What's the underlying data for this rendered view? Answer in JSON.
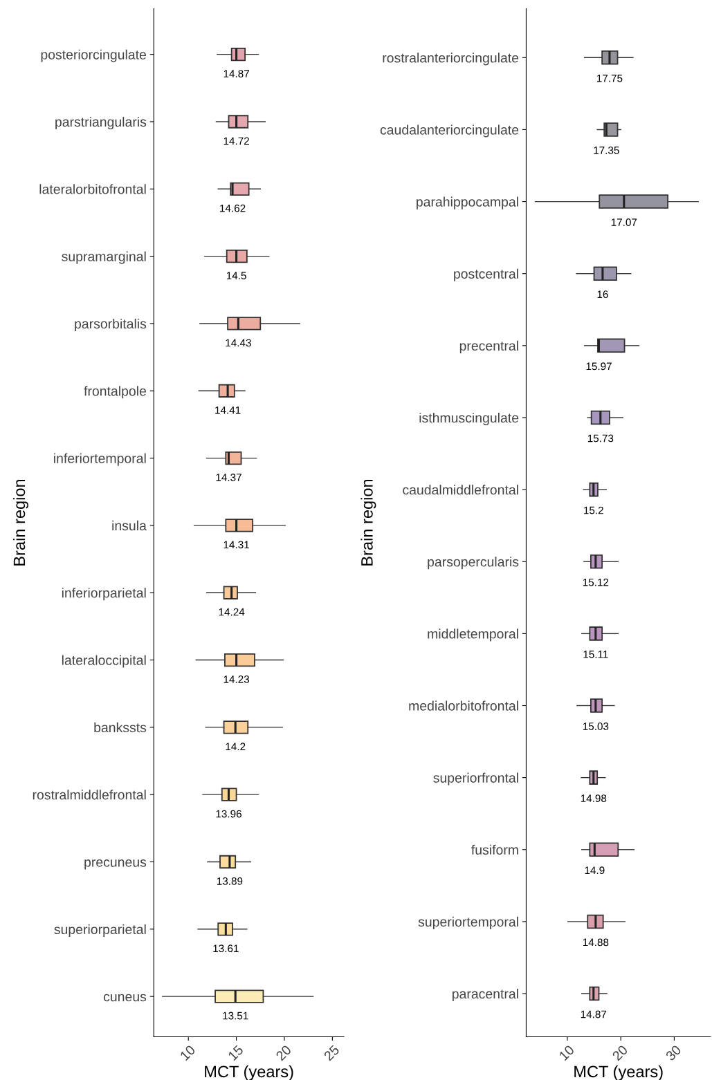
{
  "chart_data": [
    {
      "type": "box",
      "orientation": "horizontal",
      "xlabel": "MCT (years)",
      "ylabel": "Brain region",
      "xlim": [
        6.4,
        26.2
      ],
      "xticks": [
        10,
        15,
        20,
        25
      ],
      "grid": false,
      "categories": [
        "posteriorcingulate",
        "parstriangularis",
        "lateralorbitofrontal",
        "supramarginal",
        "parsorbitalis",
        "frontalpole",
        "inferiortemporal",
        "insula",
        "inferiorparietal",
        "lateraloccipital",
        "bankssts",
        "rostralmiddlefrontal",
        "precuneus",
        "superiorparietal",
        "cuneus"
      ],
      "boxes": [
        {
          "low": 13.0,
          "q1": 14.5,
          "median": 15.0,
          "q3": 15.9,
          "high": 17.3
        },
        {
          "low": 12.9,
          "q1": 14.2,
          "median": 15.0,
          "q3": 16.2,
          "high": 18.0
        },
        {
          "low": 13.1,
          "q1": 14.4,
          "median": 14.6,
          "q3": 16.3,
          "high": 17.5
        },
        {
          "low": 11.7,
          "q1": 14.0,
          "median": 15.0,
          "q3": 16.1,
          "high": 18.4
        },
        {
          "low": 11.2,
          "q1": 14.1,
          "median": 15.2,
          "q3": 17.5,
          "high": 21.6
        },
        {
          "low": 11.1,
          "q1": 13.2,
          "median": 14.1,
          "q3": 14.8,
          "high": 15.9
        },
        {
          "low": 11.9,
          "q1": 13.9,
          "median": 14.2,
          "q3": 15.5,
          "high": 17.1
        },
        {
          "low": 10.6,
          "q1": 13.9,
          "median": 15.0,
          "q3": 16.7,
          "high": 20.1
        },
        {
          "low": 11.9,
          "q1": 13.7,
          "median": 14.5,
          "q3": 15.1,
          "high": 17.0
        },
        {
          "low": 10.8,
          "q1": 13.8,
          "median": 15.0,
          "q3": 16.9,
          "high": 19.9
        },
        {
          "low": 11.8,
          "q1": 13.7,
          "median": 14.9,
          "q3": 16.2,
          "high": 19.8
        },
        {
          "low": 11.5,
          "q1": 13.5,
          "median": 14.2,
          "q3": 15.0,
          "high": 17.3
        },
        {
          "low": 12.0,
          "q1": 13.3,
          "median": 14.3,
          "q3": 14.9,
          "high": 16.5
        },
        {
          "low": 11.0,
          "q1": 13.1,
          "median": 13.9,
          "q3": 14.6,
          "high": 16.1
        },
        {
          "low": 7.3,
          "q1": 12.8,
          "median": 14.9,
          "q3": 17.8,
          "high": 23.0
        }
      ],
      "colors": [
        "#c85a6e",
        "#cc5e6c",
        "#d26168",
        "#d6625c",
        "#dd6a52",
        "#e57048",
        "#ea7845",
        "#f0843f",
        "#f49a44",
        "#f5a443",
        "#f5ac45",
        "#f6b646",
        "#f7bf4a",
        "#f6c54f",
        "#f6dc76"
      ],
      "value_labels": [
        "14.87",
        "14.72",
        "14.62",
        "14.5",
        "14.43",
        "14.41",
        "14.37",
        "14.31",
        "14.24",
        "14.23",
        "14.2",
        "13.96",
        "13.89",
        "13.61",
        "13.51"
      ]
    },
    {
      "type": "box",
      "orientation": "horizontal",
      "xlabel": "MCT (years)",
      "ylabel": "Brain region",
      "xlim": [
        2.3,
        36.8
      ],
      "xticks": [
        10,
        20,
        30
      ],
      "grid": false,
      "categories": [
        "rostralanteriorcingulate",
        "caudalanteriorcingulate",
        "parahippocampal",
        "postcentral",
        "precentral",
        "isthmuscingulate",
        "caudalmiddlefrontal",
        "parsopercularis",
        "middletemporal",
        "medialorbitofrontal",
        "superiorfrontal",
        "fusiform",
        "superiortemporal",
        "paracentral"
      ],
      "boxes": [
        {
          "low": 13.2,
          "q1": 16.5,
          "median": 17.9,
          "q3": 19.4,
          "high": 22.3
        },
        {
          "low": 15.6,
          "q1": 16.9,
          "median": 17.3,
          "q3": 19.4,
          "high": 20.0
        },
        {
          "low": 4.0,
          "q1": 16.0,
          "median": 20.6,
          "q3": 28.8,
          "high": 34.5
        },
        {
          "low": 11.7,
          "q1": 15.0,
          "median": 16.6,
          "q3": 19.2,
          "high": 21.9
        },
        {
          "low": 13.2,
          "q1": 15.7,
          "median": 15.9,
          "q3": 20.7,
          "high": 23.4
        },
        {
          "low": 13.8,
          "q1": 14.5,
          "median": 16.2,
          "q3": 17.9,
          "high": 20.4
        },
        {
          "low": 13.0,
          "q1": 14.2,
          "median": 14.9,
          "q3": 15.7,
          "high": 17.3
        },
        {
          "low": 13.1,
          "q1": 14.4,
          "median": 15.3,
          "q3": 16.5,
          "high": 19.5
        },
        {
          "low": 12.7,
          "q1": 14.2,
          "median": 15.3,
          "q3": 16.5,
          "high": 19.5
        },
        {
          "low": 11.8,
          "q1": 14.4,
          "median": 15.3,
          "q3": 16.5,
          "high": 18.8
        },
        {
          "low": 12.6,
          "q1": 14.2,
          "median": 14.9,
          "q3": 15.6,
          "high": 17.1
        },
        {
          "low": 12.7,
          "q1": 14.2,
          "median": 15.1,
          "q3": 19.5,
          "high": 22.5
        },
        {
          "low": 10.1,
          "q1": 13.8,
          "median": 15.3,
          "q3": 16.7,
          "high": 20.8
        },
        {
          "low": 12.7,
          "q1": 14.2,
          "median": 14.9,
          "q3": 15.9,
          "high": 17.4
        }
      ],
      "colors": [
        "#3f3d48",
        "#45404f",
        "#3d3a52",
        "#4a4168",
        "#56437a",
        "#5f418a",
        "#733f90",
        "#7d3f8e",
        "#833e8c",
        "#8b4284",
        "#a14c7e",
        "#b24f78",
        "#bd4e6a",
        "#c95a6b"
      ],
      "value_labels": [
        "17.75",
        "17.35",
        "17.07",
        "16",
        "15.97",
        "15.73",
        "15.2",
        "15.12",
        "15.11",
        "15.03",
        "14.98",
        "14.9",
        "14.88",
        "14.87"
      ]
    }
  ]
}
